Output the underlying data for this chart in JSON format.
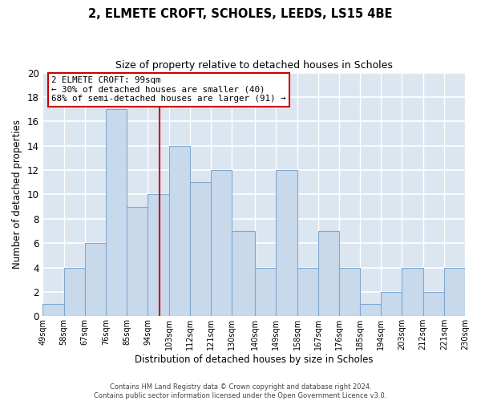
{
  "title": "2, ELMETE CROFT, SCHOLES, LEEDS, LS15 4BE",
  "subtitle": "Size of property relative to detached houses in Scholes",
  "xlabel": "Distribution of detached houses by size in Scholes",
  "ylabel": "Number of detached properties",
  "bins": [
    49,
    58,
    67,
    76,
    85,
    94,
    103,
    112,
    121,
    130,
    140,
    149,
    158,
    167,
    176,
    185,
    194,
    203,
    212,
    221,
    230
  ],
  "bin_labels": [
    "49sqm",
    "58sqm",
    "67sqm",
    "76sqm",
    "85sqm",
    "94sqm",
    "103sqm",
    "112sqm",
    "121sqm",
    "130sqm",
    "140sqm",
    "149sqm",
    "158sqm",
    "167sqm",
    "176sqm",
    "185sqm",
    "194sqm",
    "203sqm",
    "212sqm",
    "221sqm",
    "230sqm"
  ],
  "counts": [
    1,
    4,
    6,
    17,
    9,
    10,
    14,
    11,
    12,
    7,
    4,
    12,
    4,
    7,
    4,
    1,
    2,
    4,
    2,
    4
  ],
  "bar_color": "#c9d9ec",
  "bar_edge_color": "#7fa8d0",
  "grid_color": "#ffffff",
  "bg_color": "#dce6f0",
  "property_line_x": 99,
  "property_line_color": "#cc0000",
  "annotation_text": "2 ELMETE CROFT: 99sqm\n← 30% of detached houses are smaller (40)\n68% of semi-detached houses are larger (91) →",
  "annotation_box_color": "#ffffff",
  "annotation_box_edge": "#cc0000",
  "ylim": [
    0,
    20
  ],
  "yticks": [
    0,
    2,
    4,
    6,
    8,
    10,
    12,
    14,
    16,
    18,
    20
  ],
  "footer_line1": "Contains HM Land Registry data © Crown copyright and database right 2024.",
  "footer_line2": "Contains public sector information licensed under the Open Government Licence v3.0."
}
